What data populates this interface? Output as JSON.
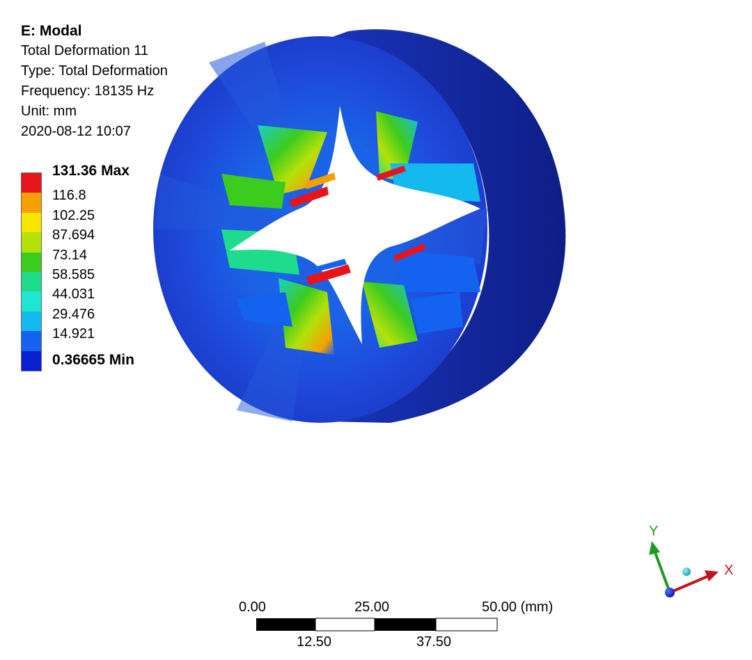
{
  "header": {
    "title": "E: Modal",
    "result_name": "Total Deformation 11",
    "type_line": "Type: Total Deformation",
    "frequency_line": "Frequency: 18135 Hz",
    "unit_line": "Unit: mm",
    "timestamp": "2020-08-12 10:07"
  },
  "legend": {
    "entries": [
      {
        "label": "131.36 Max",
        "color": "#e8141c",
        "bold": true
      },
      {
        "label": "116.8",
        "color": "#f5a000",
        "bold": false
      },
      {
        "label": "102.25",
        "color": "#f7e600",
        "bold": false
      },
      {
        "label": "87.694",
        "color": "#b4e10a",
        "bold": false
      },
      {
        "label": "73.14",
        "color": "#3ccc1e",
        "bold": false
      },
      {
        "label": "58.585",
        "color": "#1edc8c",
        "bold": false
      },
      {
        "label": "44.031",
        "color": "#1ee6d2",
        "bold": false
      },
      {
        "label": "29.476",
        "color": "#14b9f0",
        "bold": false
      },
      {
        "label": "14.921",
        "color": "#1462f0",
        "bold": false
      },
      {
        "label": "0.36665 Min",
        "color": "#0a1ed2",
        "bold": true
      }
    ]
  },
  "scale_bar": {
    "top_labels": [
      "0.00",
      "25.00",
      "50.00 (mm)"
    ],
    "bottom_labels": [
      "12.50",
      "37.50"
    ]
  },
  "triad": {
    "x_label": "X",
    "y_label": "Y",
    "x_color": "#c0141e",
    "y_color": "#1e9c1e",
    "z_color": "#1428c8"
  },
  "colors": {
    "body_blue": "#1e3ccc",
    "body_dark": "#10208c"
  }
}
